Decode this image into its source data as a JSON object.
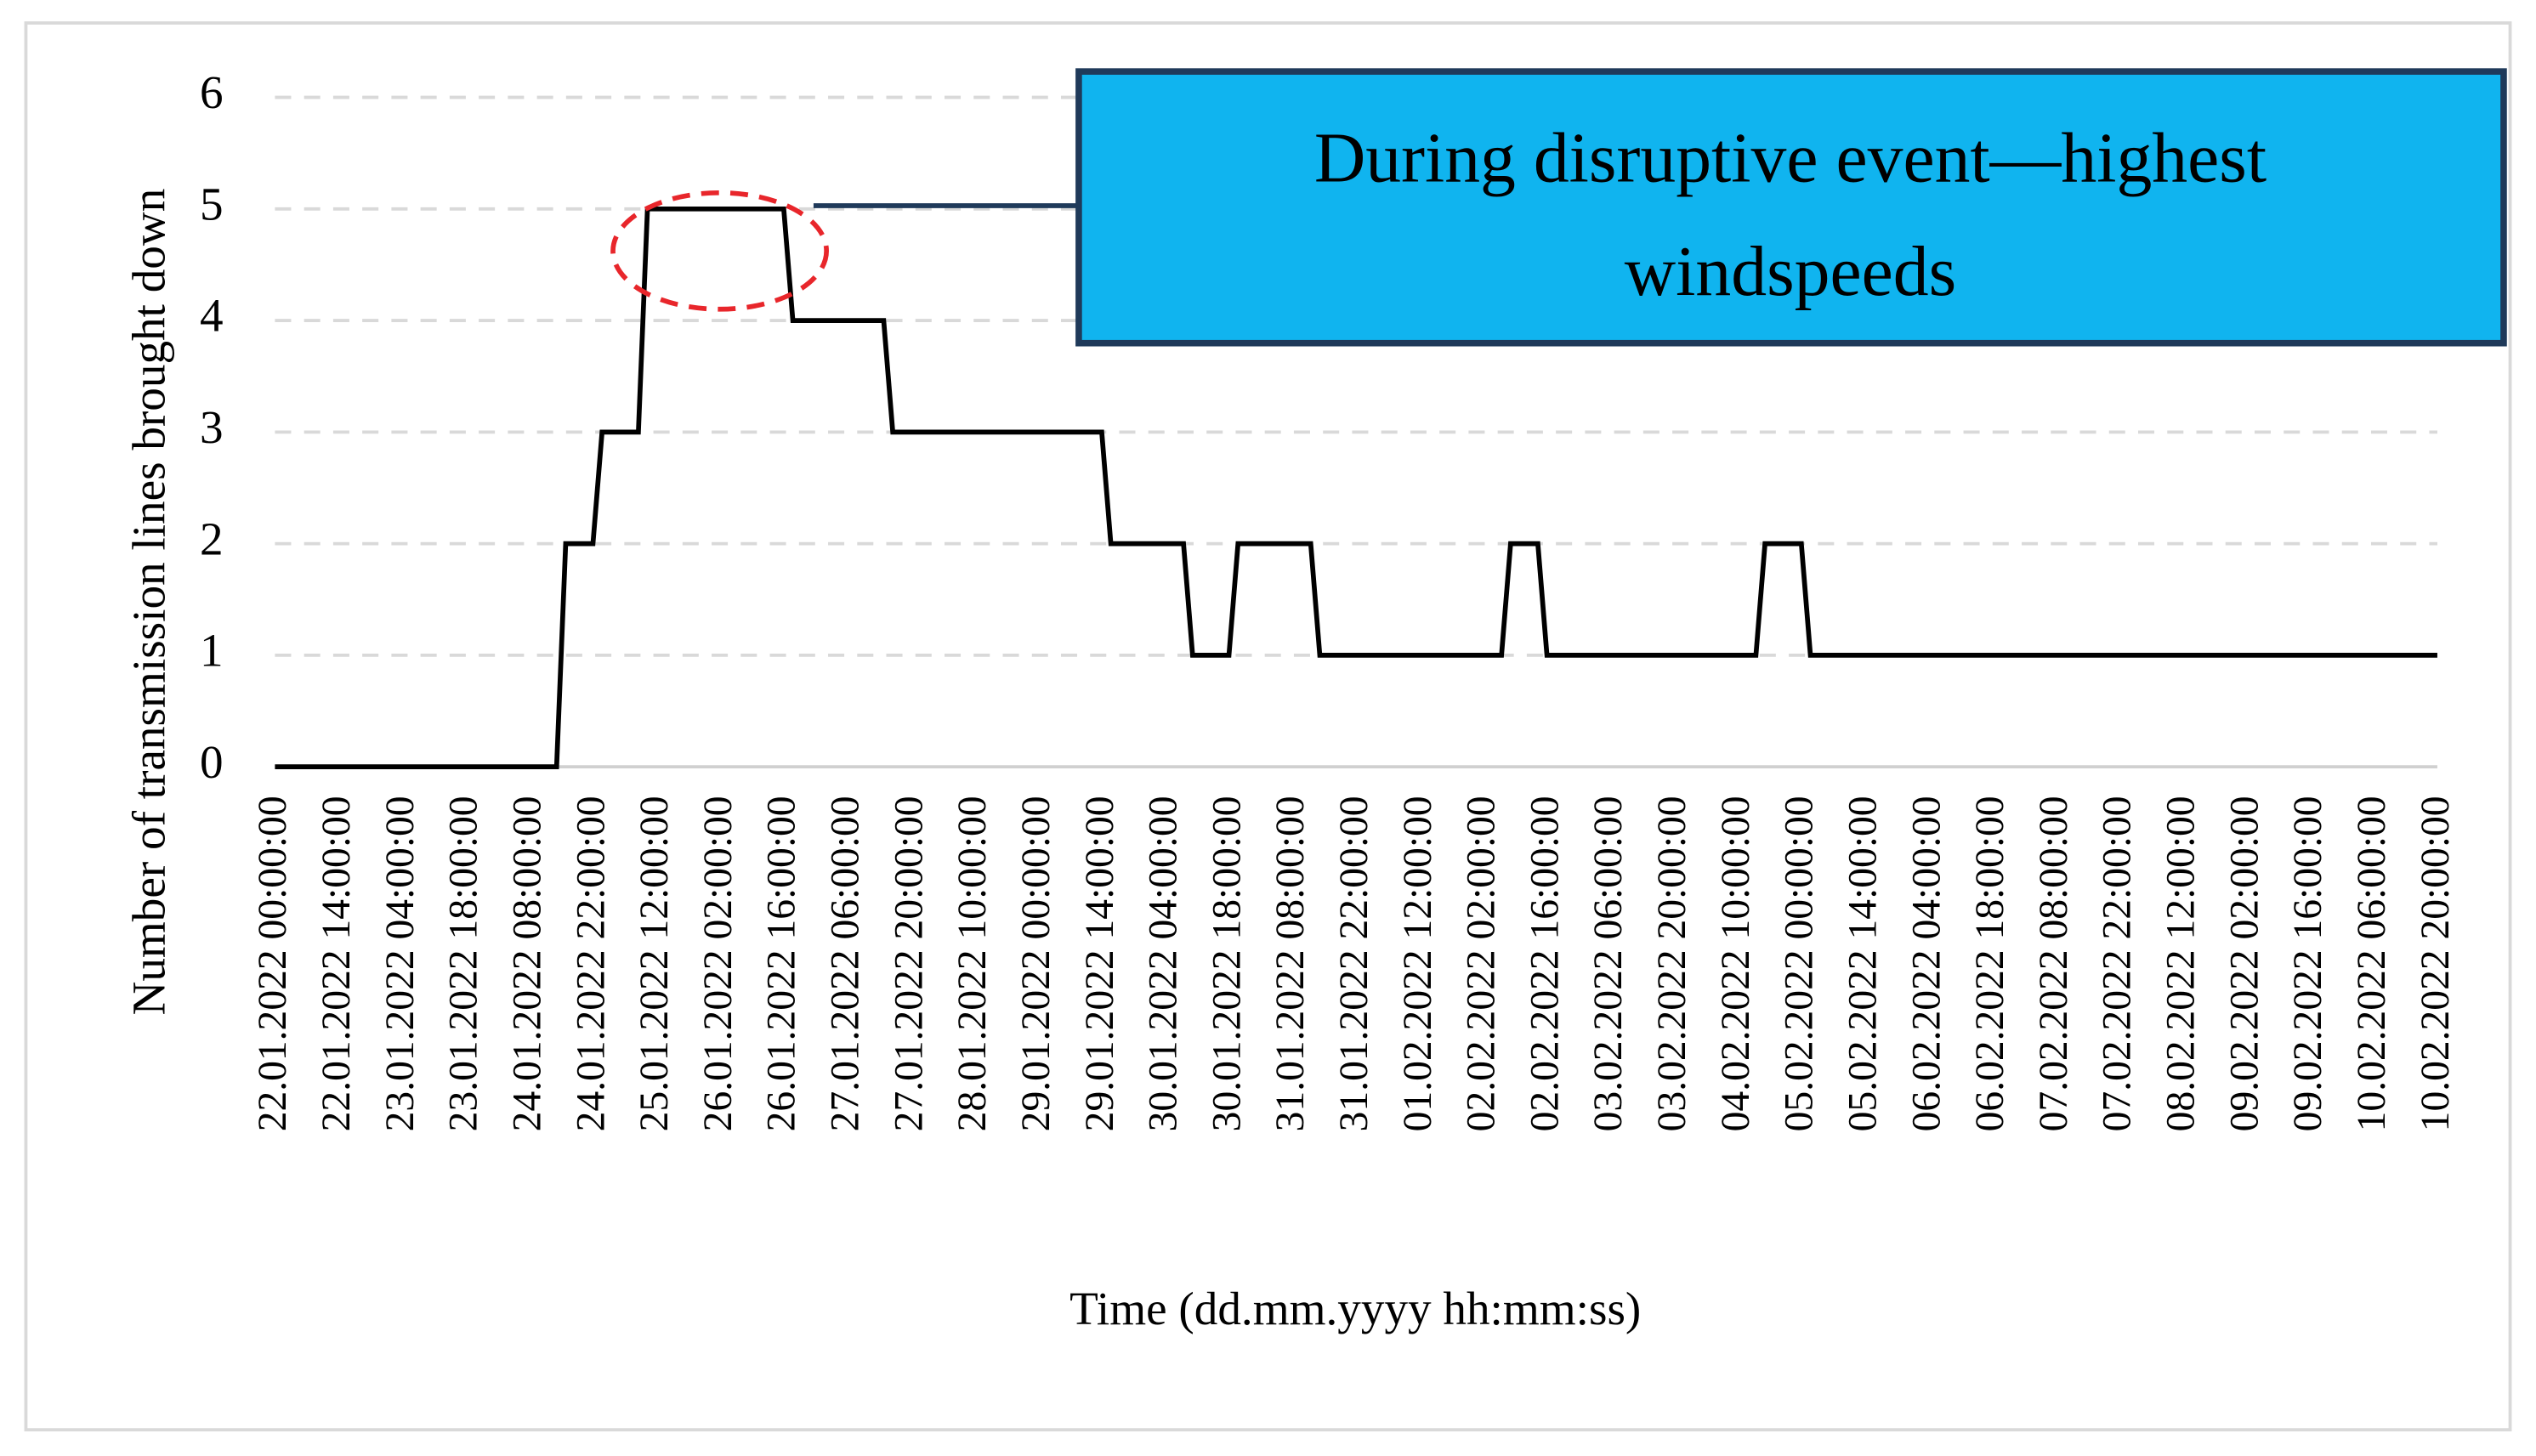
{
  "chart_data": {
    "type": "line",
    "x_label": "Time (dd.mm.yyyy hh:mm:ss)",
    "y_label": "Number of transmission lines brought down",
    "annotation_lines": [
      "During disruptive event—highest",
      "windspeeds"
    ],
    "color": "#000000",
    "grid": true,
    "ylim": [
      0,
      6
    ],
    "yticks": [
      0,
      1,
      2,
      3,
      4,
      5,
      6
    ],
    "categories": [
      "22.01.2022 00:00:00",
      null,
      null,
      null,
      null,
      null,
      null,
      "22.01.2022 14:00:00",
      null,
      null,
      null,
      null,
      null,
      null,
      "23.01.2022 04:00:00",
      null,
      null,
      null,
      null,
      null,
      null,
      "23.01.2022 18:00:00",
      null,
      null,
      null,
      null,
      null,
      null,
      "24.01.2022 08:00:00",
      null,
      null,
      null,
      null,
      null,
      null,
      "24.01.2022 22:00:00",
      null,
      null,
      null,
      null,
      null,
      null,
      "25.01.2022 12:00:00",
      null,
      null,
      null,
      null,
      null,
      null,
      "26.01.2022 02:00:00",
      null,
      null,
      null,
      null,
      null,
      null,
      "26.01.2022 16:00:00",
      null,
      null,
      null,
      null,
      null,
      null,
      "27.01.2022 06:00:00",
      null,
      null,
      null,
      null,
      null,
      null,
      "27.01.2022 20:00:00",
      null,
      null,
      null,
      null,
      null,
      null,
      "28.01.2022 10:00:00",
      null,
      null,
      null,
      null,
      null,
      null,
      "29.01.2022 00:00:00",
      null,
      null,
      null,
      null,
      null,
      null,
      "29.01.2022 14:00:00",
      null,
      null,
      null,
      null,
      null,
      null,
      "30.01.2022 04:00:00",
      null,
      null,
      null,
      null,
      null,
      null,
      "30.01.2022 18:00:00",
      null,
      null,
      null,
      null,
      null,
      null,
      "31.01.2022 08:00:00",
      null,
      null,
      null,
      null,
      null,
      null,
      "31.01.2022 22:00:00",
      null,
      null,
      null,
      null,
      null,
      null,
      "01.02.2022 12:00:00",
      null,
      null,
      null,
      null,
      null,
      null,
      "02.02.2022 02:00:00",
      null,
      null,
      null,
      null,
      null,
      null,
      "02.02.2022 16:00:00",
      null,
      null,
      null,
      null,
      null,
      null,
      "03.02.2022 06:00:00",
      null,
      null,
      null,
      null,
      null,
      null,
      "03.02.2022 20:00:00",
      null,
      null,
      null,
      null,
      null,
      null,
      "04.02.2022 10:00:00",
      null,
      null,
      null,
      null,
      null,
      null,
      "05.02.2022 00:00:00",
      null,
      null,
      null,
      null,
      null,
      null,
      "05.02.2022 14:00:00",
      null,
      null,
      null,
      null,
      null,
      null,
      "06.02.2022 04:00:00",
      null,
      null,
      null,
      null,
      null,
      null,
      "06.02.2022 18:00:00",
      null,
      null,
      null,
      null,
      null,
      null,
      "07.02.2022 08:00:00",
      null,
      null,
      null,
      null,
      null,
      null,
      "07.02.2022 22:00:00",
      null,
      null,
      null,
      null,
      null,
      null,
      "08.02.2022 12:00:00",
      null,
      null,
      null,
      null,
      null,
      null,
      "09.02.2022 02:00:00",
      null,
      null,
      null,
      null,
      null,
      null,
      "09.02.2022 16:00:00",
      null,
      null,
      null,
      null,
      null,
      null,
      "10.02.2022 06:00:00",
      null,
      null,
      null,
      null,
      null,
      null,
      "10.02.2022 20:00:00"
    ],
    "values": [
      0,
      0,
      0,
      0,
      0,
      0,
      0,
      0,
      0,
      0,
      0,
      0,
      0,
      0,
      0,
      0,
      0,
      0,
      0,
      0,
      0,
      0,
      0,
      0,
      0,
      0,
      0,
      0,
      0,
      0,
      0,
      0,
      2,
      2,
      2,
      2,
      3,
      3,
      3,
      3,
      3,
      5,
      5,
      5,
      5,
      5,
      5,
      5,
      5,
      5,
      5,
      5,
      5,
      5,
      5,
      5,
      5,
      4,
      4,
      4,
      4,
      4,
      4,
      4,
      4,
      4,
      4,
      4,
      3,
      3,
      3,
      3,
      3,
      3,
      3,
      3,
      3,
      3,
      3,
      3,
      3,
      3,
      3,
      3,
      3,
      3,
      3,
      3,
      3,
      3,
      3,
      3,
      2,
      2,
      2,
      2,
      2,
      2,
      2,
      2,
      2,
      1,
      1,
      1,
      1,
      1,
      2,
      2,
      2,
      2,
      2,
      2,
      2,
      2,
      2,
      1,
      1,
      1,
      1,
      1,
      1,
      1,
      1,
      1,
      1,
      1,
      1,
      1,
      1,
      1,
      1,
      1,
      1,
      1,
      1,
      1,
      2,
      2,
      2,
      2,
      1,
      1,
      1,
      1,
      1,
      1,
      1,
      1,
      1,
      1,
      1,
      1,
      1,
      1,
      1,
      1,
      1,
      1,
      1,
      1,
      1,
      1,
      1,
      1,
      2,
      2,
      2,
      2,
      2,
      1,
      1,
      1,
      1,
      1,
      1,
      1,
      1,
      1,
      1,
      1,
      1,
      1,
      1,
      1,
      1,
      1,
      1,
      1,
      1,
      1,
      1,
      1,
      1,
      1,
      1,
      1,
      1,
      1,
      1,
      1,
      1,
      1,
      1,
      1,
      1,
      1,
      1,
      1,
      1,
      1,
      1,
      1,
      1,
      1,
      1,
      1,
      1,
      1,
      1,
      1,
      1,
      1,
      1,
      1,
      1,
      1,
      1,
      1,
      1,
      1,
      1,
      1,
      1,
      1,
      1,
      1,
      1,
      1,
      1
    ]
  }
}
